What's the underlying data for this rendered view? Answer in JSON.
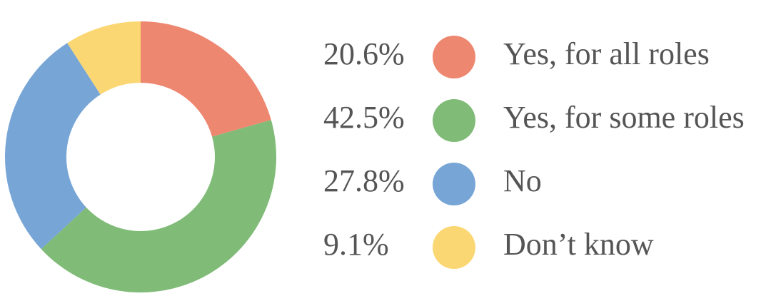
{
  "chart_data": {
    "type": "donut",
    "categories": [
      "Yes, for all roles",
      "Yes, for some roles",
      "No",
      "Don’t know"
    ],
    "values": [
      20.6,
      42.5,
      27.8,
      9.1
    ],
    "value_labels": [
      "20.6%",
      "42.5%",
      "27.8%",
      "9.1%"
    ],
    "colors": [
      "#ee8770",
      "#80bb78",
      "#77a6d6",
      "#fbd774"
    ]
  }
}
